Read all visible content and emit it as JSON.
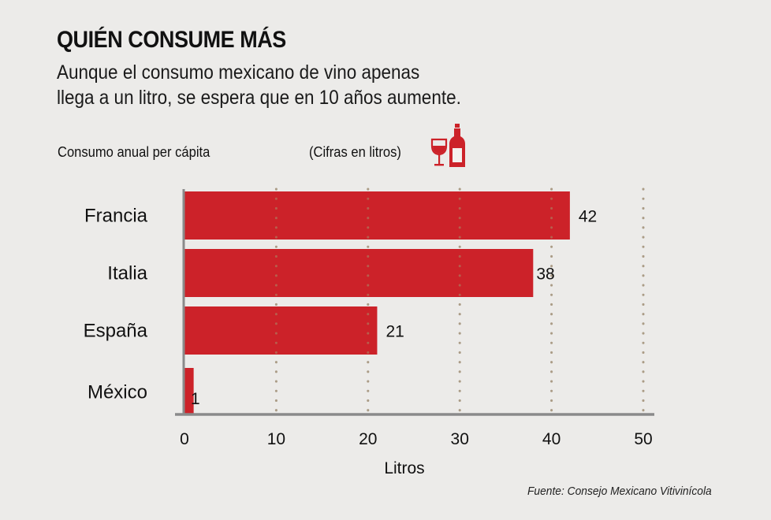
{
  "header": {
    "title": "QUIÉN CONSUME MÁS",
    "subtitle_lines": [
      "Aunque el consumo mexicano de vino apenas",
      "llega a un litro, se espera que en 10 años aumente."
    ]
  },
  "labels": {
    "left": "Consumo anual per cápita",
    "units": "(Cifras en litros)",
    "icon": "wine-glass-and-bottle-icon"
  },
  "source": "Fuente: Consejo Mexicano Vitivinícola",
  "colors": {
    "bar": "#cc2229",
    "axis": "#8a8a8a",
    "grid": "#b0aca8",
    "background": "#ecebe9"
  },
  "chart_data": {
    "type": "bar",
    "orientation": "horizontal",
    "title": "Consumo anual per cápita",
    "xlabel": "Litros",
    "ylabel": "",
    "categories": [
      "Francia",
      "Italia",
      "España",
      "México"
    ],
    "values": [
      42,
      38,
      21,
      1
    ],
    "xlim": [
      0,
      50
    ],
    "xticks": [
      0,
      10,
      20,
      30,
      40,
      50
    ],
    "grid": true,
    "grid_style": "dotted-vertical",
    "data_labels": true
  }
}
